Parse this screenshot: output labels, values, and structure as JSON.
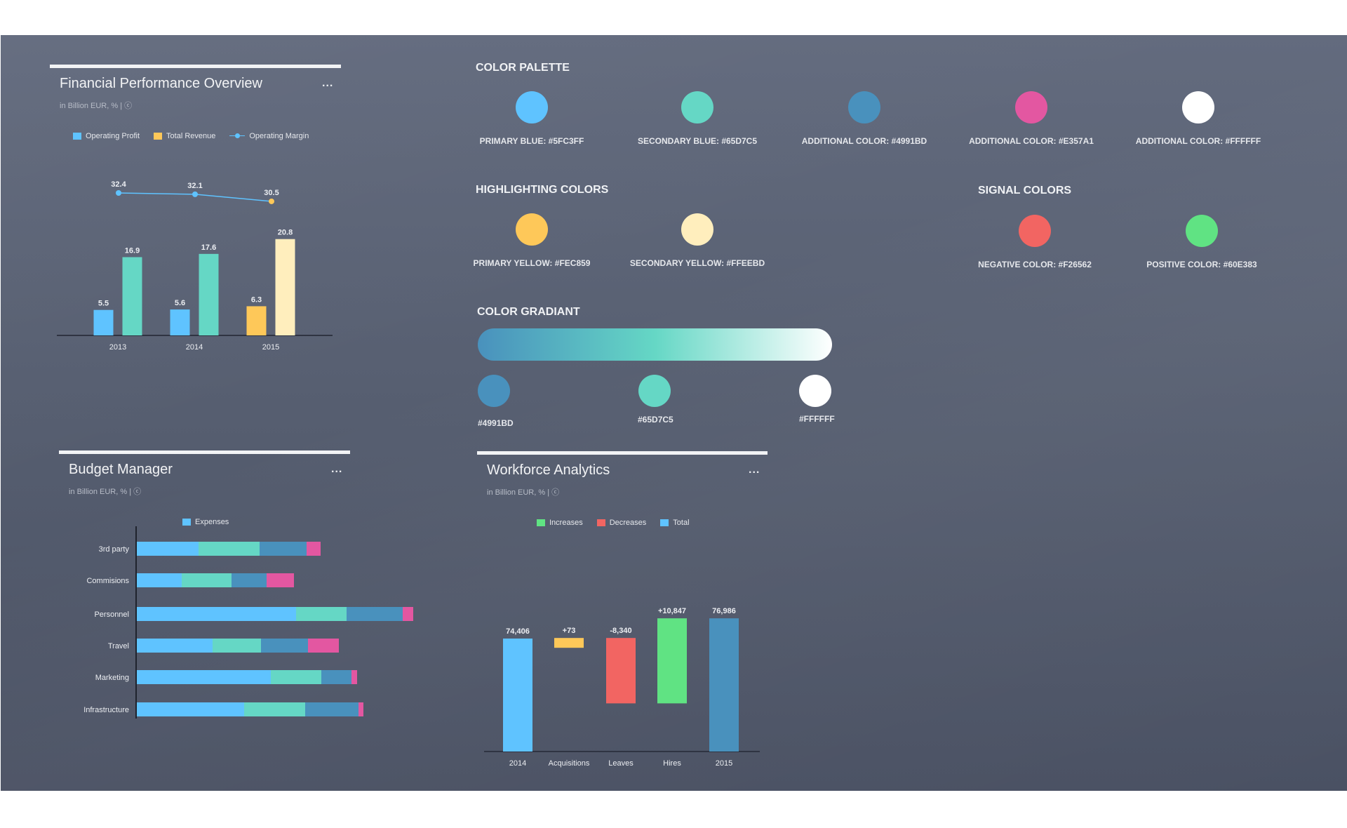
{
  "financial": {
    "title": "Financial Performance Overview",
    "subtitle": "in Billion EUR, % | ⓒ",
    "menu": "...",
    "legend": [
      "Operating Profit",
      "Total Revenue",
      "Operating Margin"
    ]
  },
  "budget": {
    "title": "Budget Manager",
    "subtitle": "in Billion EUR, % | ⓒ",
    "menu": "...",
    "legend": [
      "Expenses"
    ]
  },
  "workforce": {
    "title": "Workforce Analytics",
    "subtitle": "in Billion EUR, % | ⓒ",
    "menu": "...",
    "legend": [
      "Increases",
      "Decreases",
      "Total"
    ]
  },
  "palette": {
    "color_palette_title": "COLOR PALETTE",
    "colors": [
      {
        "label": "PRIMARY BLUE: #5FC3FF",
        "hex": "#5fc3ff"
      },
      {
        "label": "SECONDARY BLUE: #65D7C5",
        "hex": "#65d7c5"
      },
      {
        "label": "ADDITIONAL COLOR: #4991BD",
        "hex": "#4991bd"
      },
      {
        "label": "ADDITIONAL COLOR: #E357A1",
        "hex": "#e357a1"
      },
      {
        "label": "ADDITIONAL COLOR: #FFFFFF",
        "hex": "#ffffff"
      }
    ],
    "highlighting_title": "HIGHLIGHTING COLORS",
    "highlighting": [
      {
        "label": "PRIMARY YELLOW: #FEC859",
        "hex": "#fec859"
      },
      {
        "label": "SECONDARY YELLOW: #FFEEBD",
        "hex": "#ffeebd"
      }
    ],
    "signal_title": "SIGNAL COLORS",
    "signal": [
      {
        "label": "NEGATIVE COLOR: #F26562",
        "hex": "#f26562"
      },
      {
        "label": "POSITIVE COLOR: #60E383",
        "hex": "#60e383"
      }
    ],
    "gradient_title": "COLOR GRADIANT",
    "gradient": [
      {
        "label": "#4991BD",
        "hex": "#4991bd"
      },
      {
        "label": "#65D7C5",
        "hex": "#65d7c5"
      },
      {
        "label": "#FFFFFF",
        "hex": "#ffffff"
      }
    ]
  },
  "chart_data": [
    {
      "type": "bar",
      "title": "Financial Performance Overview",
      "categories": [
        "2013",
        "2014",
        "2015"
      ],
      "series": [
        {
          "name": "Operating Profit",
          "values": [
            5.5,
            5.6,
            6.3
          ],
          "colors": [
            "#5fc3ff",
            "#5fc3ff",
            "#fec859"
          ]
        },
        {
          "name": "Total Revenue",
          "values": [
            16.9,
            17.6,
            20.8
          ],
          "colors": [
            "#65d7c5",
            "#65d7c5",
            "#ffeebd"
          ]
        },
        {
          "name": "Operating Margin",
          "type": "line",
          "values": [
            32.4,
            32.1,
            30.5
          ],
          "point_colors": [
            "#5fc3ff",
            "#5fc3ff",
            "#fec859"
          ]
        }
      ],
      "ylim": [
        0,
        22
      ],
      "legend": "top-left"
    },
    {
      "type": "bar",
      "orientation": "horizontal",
      "stacked": true,
      "title": "Budget Manager",
      "categories": [
        "3rd party",
        "Commisions",
        "Personnel",
        "Travel",
        "Marketing",
        "Infrastructure"
      ],
      "segment_colors": [
        "#5fc3ff",
        "#65d7c5",
        "#4991bd",
        "#e357a1"
      ],
      "values": [
        [
          88,
          87,
          67,
          20
        ],
        [
          64,
          71,
          50,
          39
        ],
        [
          227,
          72,
          80,
          15
        ],
        [
          108,
          69,
          67,
          44
        ],
        [
          191,
          72,
          43,
          8
        ],
        [
          153,
          87,
          76,
          7
        ]
      ],
      "legend": "top-center"
    },
    {
      "type": "bar",
      "subtype": "waterfall",
      "title": "Workforce Analytics",
      "categories": [
        "2014",
        "Acquisitions",
        "Leaves",
        "Hires",
        "2015"
      ],
      "values": [
        74406,
        73,
        -8340,
        10847,
        76986
      ],
      "labels": [
        "74,406",
        "+73",
        "-8,340",
        "+10,847",
        "76,986"
      ],
      "kinds": [
        "total",
        "increase",
        "decrease",
        "increase",
        "total"
      ],
      "colors": [
        "#5fc3ff",
        "#fec859",
        "#f26562",
        "#60e383",
        "#4991bd"
      ],
      "legend": "top-center"
    }
  ]
}
